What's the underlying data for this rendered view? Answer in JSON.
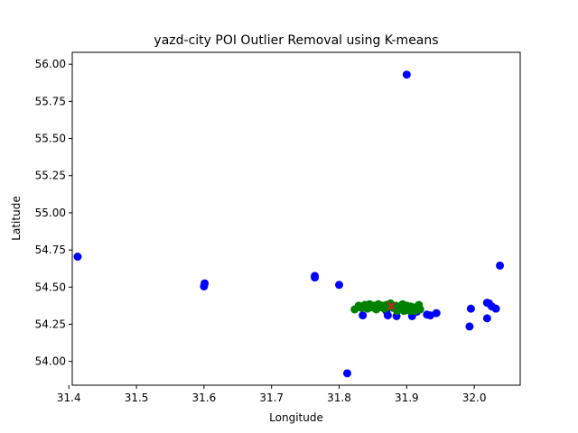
{
  "chart_data": {
    "type": "scatter",
    "title": "yazd-city POI Outlier Removal using K-means",
    "xlabel": "Longitude",
    "ylabel": "Latitude",
    "xlim": [
      31.405,
      32.068
    ],
    "ylim": [
      53.84,
      56.08
    ],
    "grid": false,
    "x_ticks": [
      "31.4",
      "31.5",
      "31.6",
      "31.7",
      "31.8",
      "31.9",
      "32.0"
    ],
    "y_ticks": [
      "54.00",
      "54.25",
      "54.50",
      "54.75",
      "55.00",
      "55.25",
      "55.50",
      "55.75",
      "56.00"
    ],
    "colors": {
      "outlier": "#0000ff",
      "inlier": "#008000",
      "centroid": "#cc2222"
    },
    "series": [
      {
        "role": "outliers",
        "color": "#0000ff",
        "points": [
          [
            31.413,
            54.705
          ],
          [
            31.601,
            54.525
          ],
          [
            31.6,
            54.505
          ],
          [
            31.764,
            54.575
          ],
          [
            31.764,
            54.565
          ],
          [
            31.8,
            54.515
          ],
          [
            31.812,
            53.92
          ],
          [
            31.9,
            55.93
          ],
          [
            32.038,
            54.645
          ],
          [
            31.995,
            54.355
          ],
          [
            32.019,
            54.395
          ],
          [
            32.022,
            54.39
          ],
          [
            32.026,
            54.37
          ],
          [
            32.032,
            54.355
          ],
          [
            31.993,
            54.235
          ],
          [
            32.019,
            54.29
          ],
          [
            31.835,
            54.31
          ],
          [
            31.872,
            54.31
          ],
          [
            31.885,
            54.305
          ],
          [
            31.908,
            54.305
          ],
          [
            31.935,
            54.31
          ],
          [
            31.944,
            54.325
          ],
          [
            31.93,
            54.315
          ],
          [
            31.87,
            54.34
          ],
          [
            31.895,
            54.345
          ],
          [
            31.915,
            54.335
          ]
        ]
      },
      {
        "role": "inliers",
        "color": "#008000",
        "points": [
          [
            31.823,
            54.35
          ],
          [
            31.829,
            54.375
          ],
          [
            31.833,
            54.36
          ],
          [
            31.838,
            54.38
          ],
          [
            31.842,
            54.355
          ],
          [
            31.845,
            54.385
          ],
          [
            31.848,
            54.365
          ],
          [
            31.851,
            54.375
          ],
          [
            31.855,
            54.35
          ],
          [
            31.858,
            54.385
          ],
          [
            31.861,
            54.365
          ],
          [
            31.864,
            54.375
          ],
          [
            31.867,
            54.355
          ],
          [
            31.87,
            54.38
          ],
          [
            31.876,
            54.39
          ],
          [
            31.88,
            54.36
          ],
          [
            31.884,
            54.375
          ],
          [
            31.888,
            54.35
          ],
          [
            31.891,
            54.365
          ],
          [
            31.894,
            54.385
          ],
          [
            31.897,
            54.355
          ],
          [
            31.9,
            54.375
          ],
          [
            31.903,
            54.345
          ],
          [
            31.906,
            54.37
          ],
          [
            31.909,
            54.355
          ],
          [
            31.912,
            54.34
          ],
          [
            31.914,
            54.365
          ],
          [
            31.918,
            54.38
          ],
          [
            31.92,
            54.35
          ],
          [
            31.886,
            54.34
          ],
          [
            31.896,
            54.34
          ],
          [
            31.905,
            54.34
          ],
          [
            31.84,
            54.37
          ],
          [
            31.852,
            54.36
          ],
          [
            31.873,
            54.368
          ]
        ]
      },
      {
        "role": "centroid",
        "color": "#cc2222",
        "points": [
          [
            31.877,
            54.372
          ]
        ]
      }
    ]
  }
}
